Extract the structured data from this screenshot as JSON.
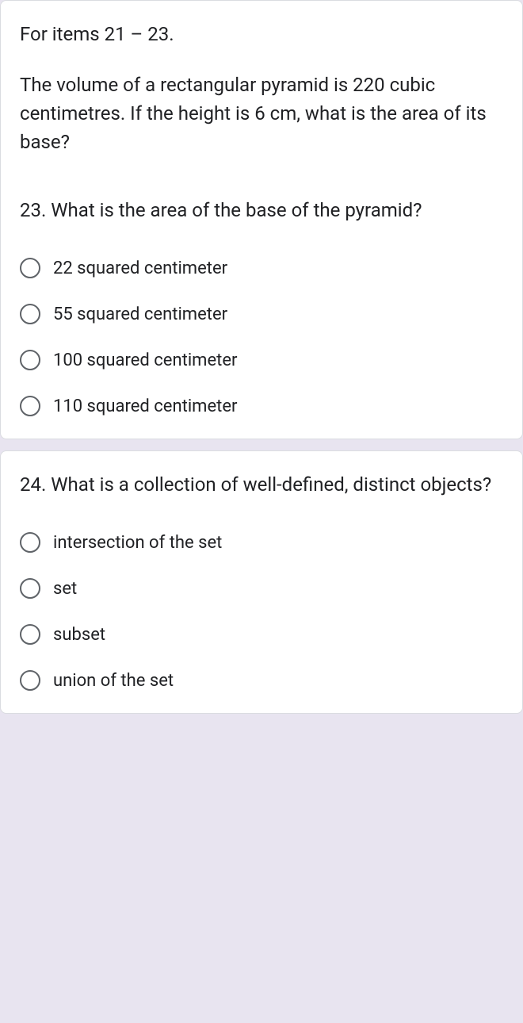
{
  "card1": {
    "instruction": "For items 21 – 23.",
    "problem": "The volume of a rectangular pyramid is 220 cubic centimetres. If the height is 6 cm, what is the area of its base?",
    "question": "23. What is the area of the base of the pyramid?",
    "options": [
      "22 squared centimeter",
      "55 squared centimeter",
      "100 squared centimeter",
      "110 squared centimeter"
    ]
  },
  "card2": {
    "question": "24.  What is a collection of well-defined, distinct objects?",
    "options": [
      "intersection of the set",
      "set",
      "subset",
      "union of the set"
    ]
  },
  "colors": {
    "background": "#e8e4f0",
    "card_bg": "#ffffff",
    "text": "#202124",
    "radio_border": "#5f6368",
    "card_border": "#dadce0"
  }
}
